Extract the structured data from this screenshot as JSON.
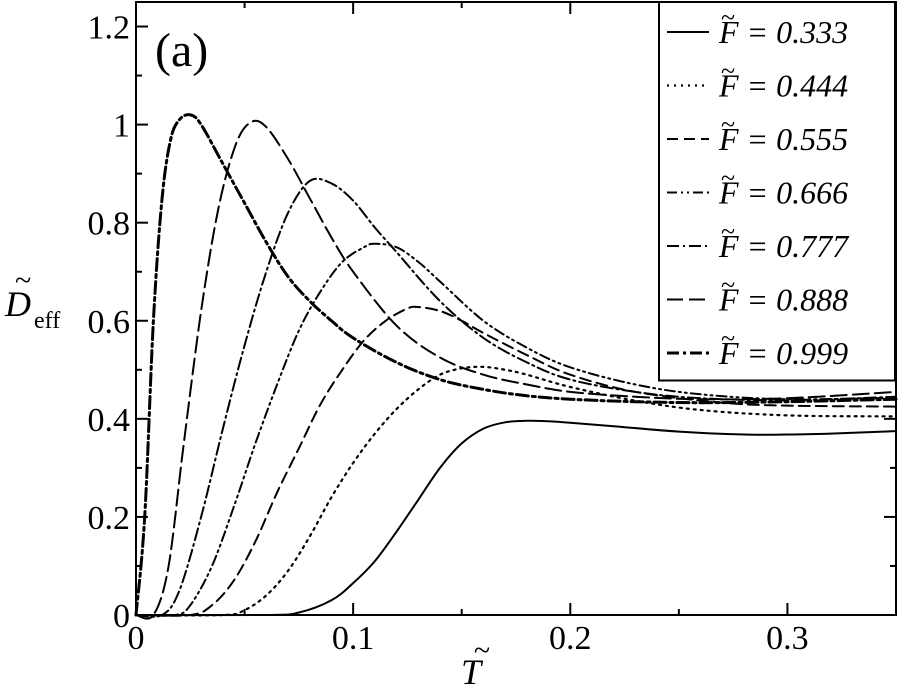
{
  "chart_data": {
    "type": "line",
    "panel_label": "(a)",
    "xlabel": "T",
    "ylabel": "D",
    "ylabel_sub": "eff",
    "xlim": [
      0,
      0.35
    ],
    "ylim": [
      0,
      1.25
    ],
    "xticks": [
      0,
      0.1,
      0.2,
      0.3
    ],
    "xtick_labels": [
      "0",
      "0.1",
      "0.2",
      "0.3"
    ],
    "yticks": [
      0,
      0.2,
      0.4,
      0.6,
      0.8,
      1.0,
      1.2
    ],
    "ytick_labels": [
      "0",
      "0.2",
      "0.4",
      "0.6",
      "0.8",
      "1",
      "1.2"
    ],
    "grid": false,
    "legend_position": "top-right",
    "series": [
      {
        "name": "F = 0.333",
        "dash": "solid",
        "x": [
          0,
          0.06,
          0.075,
          0.09,
          0.1,
          0.11,
          0.12,
          0.13,
          0.14,
          0.15,
          0.16,
          0.17,
          0.18,
          0.19,
          0.2,
          0.22,
          0.25,
          0.28,
          0.3,
          0.32,
          0.35
        ],
        "y": [
          0,
          0,
          0.005,
          0.03,
          0.065,
          0.11,
          0.17,
          0.235,
          0.3,
          0.35,
          0.38,
          0.393,
          0.396,
          0.395,
          0.392,
          0.385,
          0.374,
          0.368,
          0.368,
          0.37,
          0.375
        ]
      },
      {
        "name": "F = 0.444",
        "dash": "dotted",
        "x": [
          0,
          0.04,
          0.05,
          0.06,
          0.07,
          0.08,
          0.09,
          0.1,
          0.11,
          0.12,
          0.13,
          0.14,
          0.15,
          0.16,
          0.17,
          0.18,
          0.2,
          0.23,
          0.26,
          0.3,
          0.35
        ],
        "y": [
          0,
          0,
          0.01,
          0.04,
          0.09,
          0.16,
          0.24,
          0.31,
          0.37,
          0.42,
          0.46,
          0.49,
          0.503,
          0.506,
          0.5,
          0.49,
          0.465,
          0.437,
          0.418,
          0.407,
          0.405
        ]
      },
      {
        "name": "F = 0.555",
        "dash": "dashed",
        "x": [
          0,
          0.025,
          0.035,
          0.045,
          0.055,
          0.065,
          0.075,
          0.085,
          0.095,
          0.105,
          0.115,
          0.125,
          0.13,
          0.14,
          0.15,
          0.16,
          0.18,
          0.2,
          0.23,
          0.27,
          0.3,
          0.35
        ],
        "y": [
          0,
          0,
          0.02,
          0.07,
          0.15,
          0.25,
          0.34,
          0.43,
          0.5,
          0.56,
          0.6,
          0.625,
          0.628,
          0.62,
          0.6,
          0.575,
          0.53,
          0.49,
          0.455,
          0.433,
          0.427,
          0.425
        ]
      },
      {
        "name": "F = 0.666",
        "dash": "dashdotdot",
        "x": [
          0,
          0.018,
          0.025,
          0.035,
          0.045,
          0.055,
          0.065,
          0.075,
          0.085,
          0.095,
          0.105,
          0.11,
          0.12,
          0.13,
          0.14,
          0.16,
          0.18,
          0.2,
          0.23,
          0.26,
          0.3,
          0.35
        ],
        "y": [
          0,
          0,
          0.02,
          0.1,
          0.22,
          0.35,
          0.47,
          0.58,
          0.66,
          0.72,
          0.75,
          0.757,
          0.75,
          0.72,
          0.68,
          0.6,
          0.545,
          0.505,
          0.47,
          0.45,
          0.44,
          0.443
        ]
      },
      {
        "name": "F = 0.777",
        "dash": "dashdot",
        "x": [
          0,
          0.012,
          0.02,
          0.03,
          0.04,
          0.05,
          0.06,
          0.07,
          0.08,
          0.09,
          0.1,
          0.11,
          0.12,
          0.14,
          0.16,
          0.18,
          0.2,
          0.23,
          0.26,
          0.3,
          0.35
        ],
        "y": [
          0,
          0,
          0.05,
          0.2,
          0.38,
          0.55,
          0.7,
          0.82,
          0.885,
          0.88,
          0.845,
          0.79,
          0.74,
          0.64,
          0.565,
          0.515,
          0.48,
          0.455,
          0.442,
          0.438,
          0.445
        ]
      },
      {
        "name": "F = 0.888",
        "dash": "longdash",
        "x": [
          0,
          0.008,
          0.015,
          0.022,
          0.03,
          0.038,
          0.046,
          0.053,
          0.06,
          0.07,
          0.08,
          0.09,
          0.1,
          0.12,
          0.14,
          0.16,
          0.18,
          0.2,
          0.23,
          0.26,
          0.3,
          0.35
        ],
        "y": [
          0,
          0,
          0.1,
          0.35,
          0.62,
          0.83,
          0.96,
          1.005,
          0.995,
          0.93,
          0.85,
          0.77,
          0.7,
          0.59,
          0.525,
          0.49,
          0.47,
          0.455,
          0.445,
          0.44,
          0.442,
          0.455
        ]
      },
      {
        "name": "F = 0.999",
        "dash": "dashdotbold",
        "x": [
          0,
          0.004,
          0.008,
          0.012,
          0.016,
          0.02,
          0.025,
          0.03,
          0.04,
          0.05,
          0.06,
          0.07,
          0.08,
          0.09,
          0.1,
          0.12,
          0.14,
          0.16,
          0.18,
          0.2,
          0.23,
          0.26,
          0.3,
          0.35
        ],
        "y": [
          0,
          0.2,
          0.6,
          0.85,
          0.97,
          1.01,
          1.02,
          1.0,
          0.92,
          0.84,
          0.76,
          0.69,
          0.64,
          0.6,
          0.565,
          0.515,
          0.48,
          0.46,
          0.447,
          0.44,
          0.435,
          0.433,
          0.435,
          0.44
        ]
      }
    ]
  }
}
